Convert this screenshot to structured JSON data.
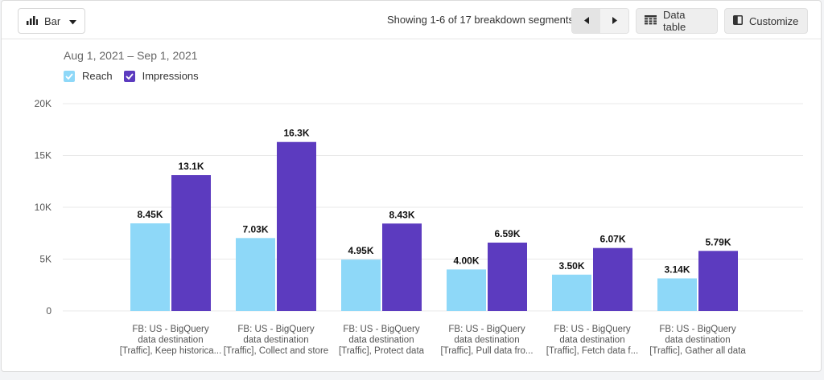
{
  "toolbar": {
    "chart_type_label": "Bar",
    "segments_text": "Showing 1-6 of 17 breakdown segments",
    "data_table_label": "Data table",
    "customize_label": "Customize"
  },
  "date_range": "Aug 1, 2021 – Sep 1, 2021",
  "colors": {
    "reach": "#8ed8f8",
    "impressions": "#5c3bbf",
    "grid": "#e8e8e8"
  },
  "chart_data": {
    "type": "bar",
    "categories": [
      [
        "FB: US - BigQuery",
        "data destination",
        "[Traffic], Keep historica..."
      ],
      [
        "FB: US - BigQuery",
        "data destination",
        "[Traffic], Collect and store"
      ],
      [
        "FB: US - BigQuery",
        "data destination",
        "[Traffic], Protect data"
      ],
      [
        "FB: US - BigQuery",
        "data destination",
        "[Traffic], Pull data fro..."
      ],
      [
        "FB: US - BigQuery",
        "data destination",
        "[Traffic], Fetch data f..."
      ],
      [
        "FB: US - BigQuery",
        "data destination",
        "[Traffic], Gather all data"
      ]
    ],
    "series": [
      {
        "name": "Reach",
        "values": [
          8450,
          7030,
          4950,
          4000,
          3500,
          3140
        ],
        "labels": [
          "8.45K",
          "7.03K",
          "4.95K",
          "4.00K",
          "3.50K",
          "3.14K"
        ]
      },
      {
        "name": "Impressions",
        "values": [
          13100,
          16300,
          8430,
          6590,
          6070,
          5790
        ],
        "labels": [
          "13.1K",
          "16.3K",
          "8.43K",
          "6.59K",
          "6.07K",
          "5.79K"
        ]
      }
    ],
    "ylim": [
      0,
      20000
    ],
    "yticks": [
      0,
      5000,
      10000,
      15000,
      20000
    ],
    "ytick_labels": [
      "0",
      "5K",
      "10K",
      "15K",
      "20K"
    ],
    "grid": true,
    "legend": "top-left"
  }
}
